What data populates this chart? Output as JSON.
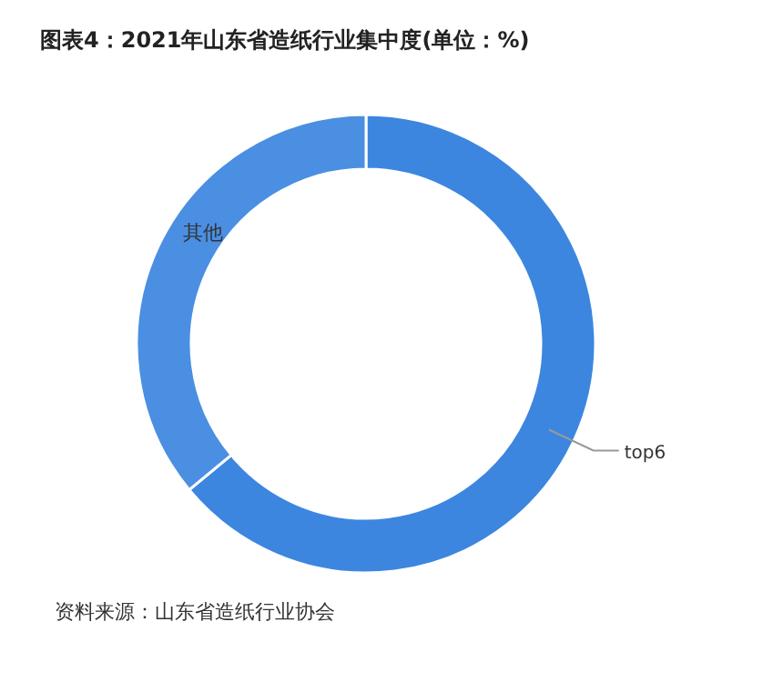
{
  "chart_data": {
    "type": "donut",
    "title": "图表4：2021年山东省造纸行业集中度(单位：%)",
    "categories": [
      "top6",
      "其他"
    ],
    "values": [
      64,
      36
    ],
    "colors": [
      "#3c86e0",
      "#4a8fe2"
    ],
    "annotations": [
      "资料来源：山东省造纸行业协会"
    ]
  }
}
